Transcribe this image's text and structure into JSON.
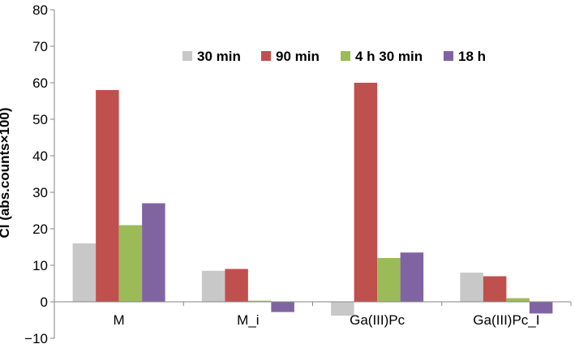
{
  "chart_data": {
    "type": "bar",
    "title": "",
    "xlabel": "",
    "ylabel": "CI (abs.counts×100)",
    "ylim": [
      -10,
      80
    ],
    "yticks": [
      -10,
      0,
      10,
      20,
      30,
      40,
      50,
      60,
      70,
      80
    ],
    "ytick_labels": [
      "−10",
      "0",
      "10",
      "20",
      "30",
      "40",
      "50",
      "60",
      "70",
      "80"
    ],
    "grid": false,
    "legend_position": "top-right",
    "categories": [
      "M",
      "M_i",
      "Ga(III)Pc",
      "Ga(III)Pc_I"
    ],
    "series": [
      {
        "name": "30 min",
        "color": "#c8c8c8",
        "values": [
          16,
          8.5,
          -3.8,
          8
        ]
      },
      {
        "name": "90 min",
        "color": "#c0504d",
        "values": [
          58,
          9,
          60,
          7
        ]
      },
      {
        "name": "4 h 30 min",
        "color": "#9bbb59",
        "values": [
          21,
          0.3,
          12,
          1
        ]
      },
      {
        "name": "18 h",
        "color": "#8064a2",
        "values": [
          27,
          -2.8,
          13.5,
          -3.2
        ]
      }
    ]
  }
}
